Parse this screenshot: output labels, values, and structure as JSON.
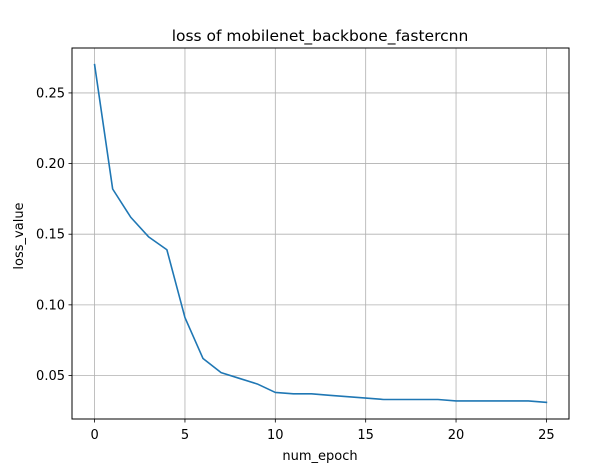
{
  "chart_data": {
    "type": "line",
    "title": "loss of mobilenet_backbone_fastercnn",
    "xlabel": "num_epoch",
    "ylabel": "loss_value",
    "xlim": [
      -1.25,
      26.25
    ],
    "ylim": [
      0.0192,
      0.2818
    ],
    "xticks": [
      0,
      5,
      10,
      15,
      20,
      25
    ],
    "xtick_labels": [
      "0",
      "5",
      "10",
      "15",
      "20",
      "25"
    ],
    "yticks": [
      0.05,
      0.1,
      0.15,
      0.2,
      0.25
    ],
    "ytick_labels": [
      "0.05",
      "0.10",
      "0.15",
      "0.20",
      "0.25"
    ],
    "grid": true,
    "legend": "none",
    "series": [
      {
        "color": "#1f77b4",
        "x": [
          0,
          1,
          2,
          3,
          4,
          5,
          6,
          7,
          8,
          9,
          10,
          11,
          12,
          13,
          14,
          15,
          16,
          17,
          18,
          19,
          20,
          21,
          22,
          23,
          24,
          25
        ],
        "y": [
          0.27,
          0.182,
          0.162,
          0.148,
          0.139,
          0.091,
          0.062,
          0.052,
          0.048,
          0.044,
          0.038,
          0.037,
          0.037,
          0.036,
          0.035,
          0.034,
          0.033,
          0.033,
          0.033,
          0.033,
          0.032,
          0.032,
          0.032,
          0.032,
          0.032,
          0.031
        ]
      }
    ]
  }
}
